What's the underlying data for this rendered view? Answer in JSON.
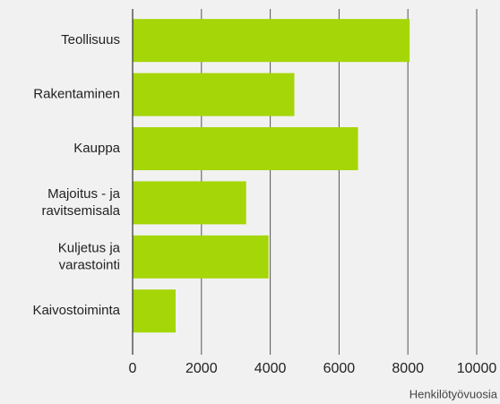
{
  "chart_data": {
    "type": "bar",
    "orientation": "horizontal",
    "categories": [
      [
        "Teollisuus"
      ],
      [
        "Rakentaminen"
      ],
      [
        "Kauppa"
      ],
      [
        "Majoitus - ja",
        "ravitsemisala"
      ],
      [
        "Kuljetus ja",
        "varastointi"
      ],
      [
        "Kaivostoiminta"
      ]
    ],
    "values": [
      8050,
      4700,
      6550,
      3300,
      3950,
      1250
    ],
    "color": "#a5d608",
    "xlim": [
      0,
      10000
    ],
    "xticks": [
      0,
      2000,
      4000,
      6000,
      8000,
      10000
    ],
    "xlabel": "Henkilötyövuosia",
    "grid": true
  }
}
